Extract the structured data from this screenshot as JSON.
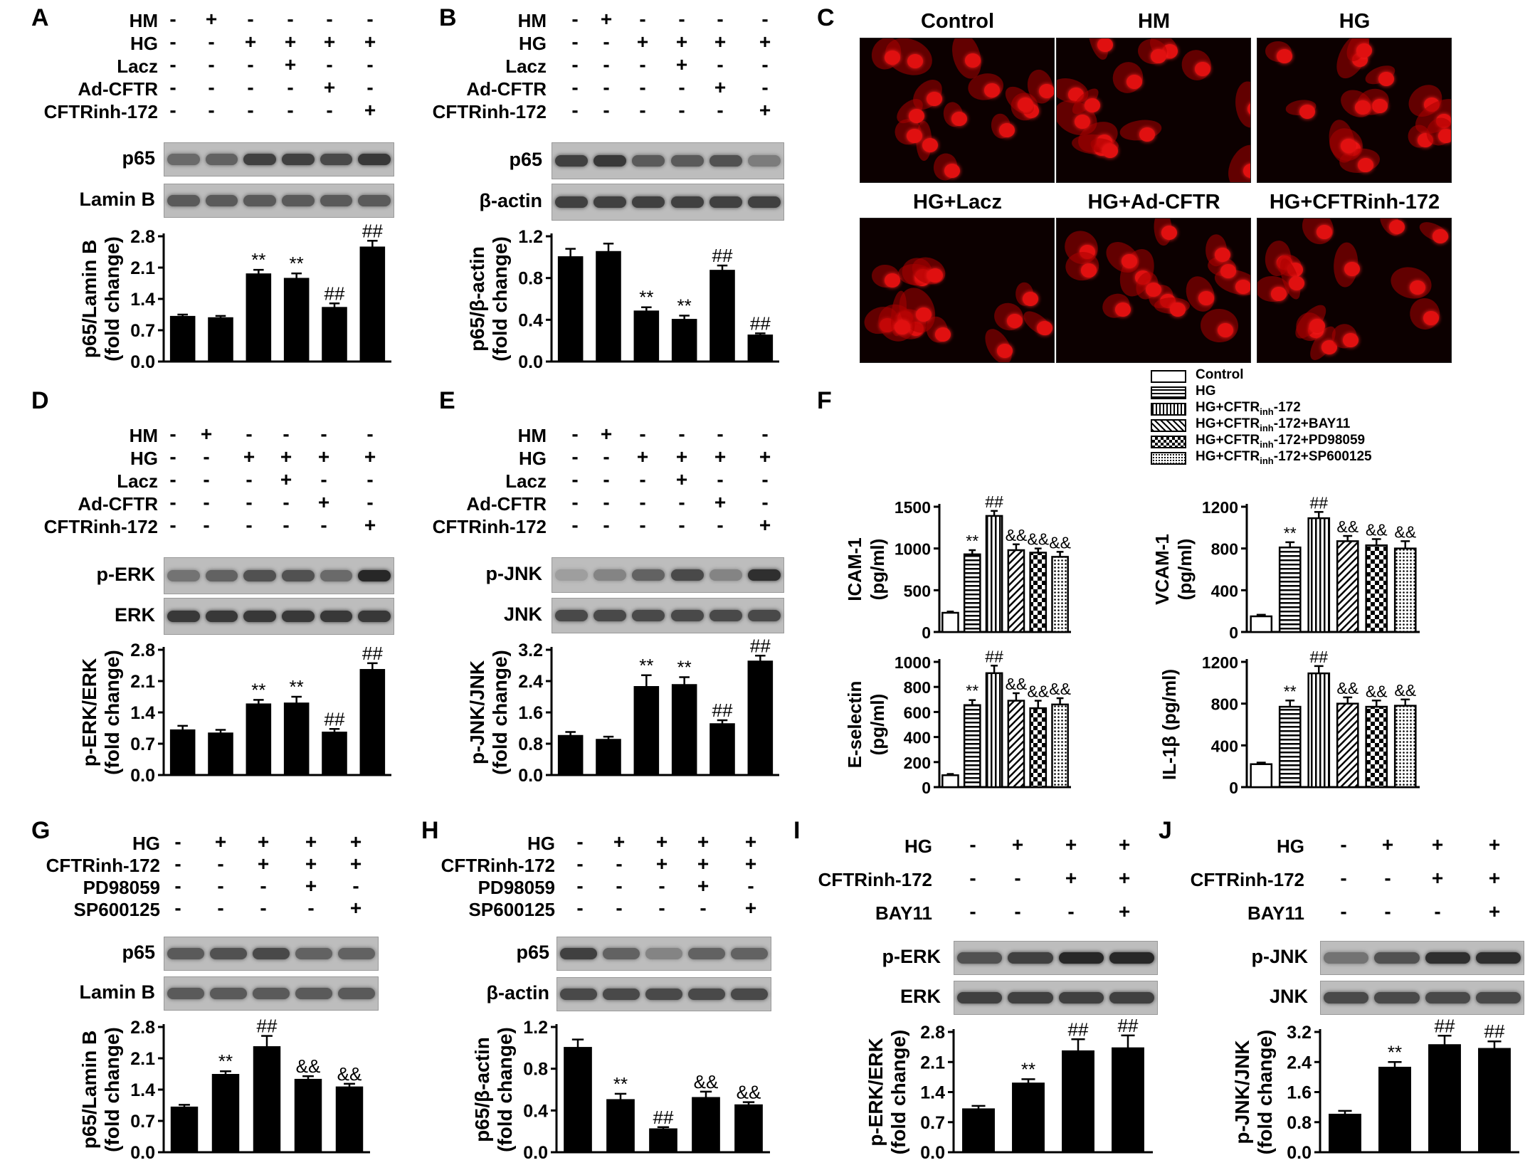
{
  "panels": {
    "A": {
      "label": "A",
      "rows": [
        {
          "name": "HM",
          "s": [
            "-",
            "+",
            "-",
            "-",
            "-",
            "-"
          ]
        },
        {
          "name": "HG",
          "s": [
            "-",
            "-",
            "+",
            "+",
            "+",
            "+"
          ]
        },
        {
          "name": "Lacz",
          "s": [
            "-",
            "-",
            "-",
            "+",
            "-",
            "-"
          ]
        },
        {
          "name": "Ad-CFTR",
          "s": [
            "-",
            "-",
            "-",
            "-",
            "+",
            "-"
          ]
        },
        {
          "name": "CFTRinh-172",
          "s": [
            "-",
            "-",
            "-",
            "-",
            "-",
            "+"
          ]
        }
      ],
      "blots": [
        "p65",
        "Lamin B"
      ],
      "ylabel1": "p65/Lamin B",
      "ylabel2": "(fold change)",
      "ticks": [
        "0.0",
        "0.7",
        "1.4",
        "2.1",
        "2.8"
      ]
    },
    "B": {
      "label": "B",
      "rows": [
        {
          "name": "HM",
          "s": [
            "-",
            "+",
            "-",
            "-",
            "-",
            "-"
          ]
        },
        {
          "name": "HG",
          "s": [
            "-",
            "-",
            "+",
            "+",
            "+",
            "+"
          ]
        },
        {
          "name": "Lacz",
          "s": [
            "-",
            "-",
            "-",
            "+",
            "-",
            "-"
          ]
        },
        {
          "name": "Ad-CFTR",
          "s": [
            "-",
            "-",
            "-",
            "-",
            "+",
            "-"
          ]
        },
        {
          "name": "CFTRinh-172",
          "s": [
            "-",
            "-",
            "-",
            "-",
            "-",
            "+"
          ]
        }
      ],
      "blots": [
        "p65",
        "β-actin"
      ],
      "ylabel1": "p65/β-actin",
      "ylabel2": "(fold change)",
      "ticks": [
        "0.0",
        "0.4",
        "0.8",
        "1.2"
      ]
    },
    "C": {
      "label": "C",
      "titles": [
        "Control",
        "HM",
        "HG",
        "HG+Lacz",
        "HG+Ad-CFTR",
        "HG+CFTRinh-172"
      ]
    },
    "D": {
      "label": "D",
      "rows": [
        {
          "name": "HM",
          "s": [
            "-",
            "+",
            "-",
            "-",
            "-",
            "-"
          ]
        },
        {
          "name": "HG",
          "s": [
            "-",
            "-",
            "+",
            "+",
            "+",
            "+"
          ]
        },
        {
          "name": "Lacz",
          "s": [
            "-",
            "-",
            "-",
            "+",
            "-",
            "-"
          ]
        },
        {
          "name": "Ad-CFTR",
          "s": [
            "-",
            "-",
            "-",
            "-",
            "+",
            "-"
          ]
        },
        {
          "name": "CFTRinh-172",
          "s": [
            "-",
            "-",
            "-",
            "-",
            "-",
            "+"
          ]
        }
      ],
      "blots": [
        "p-ERK",
        "ERK"
      ],
      "ylabel1": "p-ERK/ERK",
      "ylabel2": "(fold change)",
      "ticks": [
        "0.0",
        "0.7",
        "1.4",
        "2.1",
        "2.8"
      ]
    },
    "E": {
      "label": "E",
      "rows": [
        {
          "name": "HM",
          "s": [
            "-",
            "+",
            "-",
            "-",
            "-",
            "-"
          ]
        },
        {
          "name": "HG",
          "s": [
            "-",
            "-",
            "+",
            "+",
            "+",
            "+"
          ]
        },
        {
          "name": "Lacz",
          "s": [
            "-",
            "-",
            "-",
            "+",
            "-",
            "-"
          ]
        },
        {
          "name": "Ad-CFTR",
          "s": [
            "-",
            "-",
            "-",
            "-",
            "+",
            "-"
          ]
        },
        {
          "name": "CFTRinh-172",
          "s": [
            "-",
            "-",
            "-",
            "-",
            "-",
            "+"
          ]
        }
      ],
      "blots": [
        "p-JNK",
        "JNK"
      ],
      "ylabel1": "p-JNK/JNK",
      "ylabel2": "(fold change)",
      "ticks": [
        "0.0",
        "0.8",
        "1.6",
        "2.4",
        "3.2"
      ]
    },
    "F": {
      "label": "F",
      "legend": [
        {
          "pre": "Control",
          "sub": "",
          "post": "",
          "pattern": "white"
        },
        {
          "pre": "HG",
          "sub": "",
          "post": "",
          "pattern": "hstripe"
        },
        {
          "pre": "HG+CFTR",
          "sub": "inh",
          "post": "-172",
          "pattern": "vstripe"
        },
        {
          "pre": "HG+CFTR",
          "sub": "inh",
          "post": "-172+BAY11",
          "pattern": "diag"
        },
        {
          "pre": "HG+CFTR",
          "sub": "inh",
          "post": "-172+PD98059",
          "pattern": "check"
        },
        {
          "pre": "HG+CFTR",
          "sub": "inh",
          "post": "-172+SP600125",
          "pattern": "dots"
        }
      ],
      "charts": [
        {
          "ylabel1": "ICAM-1",
          "ylabel2": "(pg/ml)",
          "ticks": [
            "0",
            "500",
            "1000",
            "1500"
          ]
        },
        {
          "ylabel1": "VCAM-1",
          "ylabel2": "(pg/ml)",
          "ticks": [
            "0",
            "400",
            "800",
            "1200"
          ]
        },
        {
          "ylabel1": "E-selectin",
          "ylabel2": "(pg/ml)",
          "ticks": [
            "0",
            "200",
            "400",
            "600",
            "800",
            "1000"
          ]
        },
        {
          "ylabel1": "IL-1β (pg/ml)",
          "ylabel2": "",
          "ticks": [
            "0",
            "400",
            "800",
            "1200"
          ]
        }
      ]
    },
    "G": {
      "label": "G",
      "rows": [
        {
          "name": "HG",
          "s": [
            "-",
            "+",
            "+",
            "+",
            "+"
          ]
        },
        {
          "name": "CFTRinh-172",
          "s": [
            "-",
            "-",
            "+",
            "+",
            "+"
          ]
        },
        {
          "name": "PD98059",
          "s": [
            "-",
            "-",
            "-",
            "+",
            "-"
          ]
        },
        {
          "name": "SP600125",
          "s": [
            "-",
            "-",
            "-",
            "-",
            "+"
          ]
        }
      ],
      "blots": [
        "p65",
        "Lamin B"
      ],
      "ylabel1": "p65/Lamin B",
      "ylabel2": "(fold change)",
      "ticks": [
        "0.0",
        "0.7",
        "1.4",
        "2.1",
        "2.8"
      ]
    },
    "H": {
      "label": "H",
      "rows": [
        {
          "name": "HG",
          "s": [
            "-",
            "+",
            "+",
            "+",
            "+"
          ]
        },
        {
          "name": "CFTRinh-172",
          "s": [
            "-",
            "-",
            "+",
            "+",
            "+"
          ]
        },
        {
          "name": "PD98059",
          "s": [
            "-",
            "-",
            "-",
            "+",
            "-"
          ]
        },
        {
          "name": "SP600125",
          "s": [
            "-",
            "-",
            "-",
            "-",
            "+"
          ]
        }
      ],
      "blots": [
        "p65",
        "β-actin"
      ],
      "ylabel1": "p65/β-actin",
      "ylabel2": "(fold change)",
      "ticks": [
        "0.0",
        "0.4",
        "0.8",
        "1.2"
      ]
    },
    "I": {
      "label": "I",
      "rows": [
        {
          "name": "HG",
          "s": [
            "-",
            "+",
            "+",
            "+"
          ]
        },
        {
          "name": "CFTRinh-172",
          "s": [
            "-",
            "-",
            "+",
            "+"
          ]
        },
        {
          "name": "BAY11",
          "s": [
            "-",
            "-",
            "-",
            "+"
          ]
        }
      ],
      "blots": [
        "p-ERK",
        "ERK"
      ],
      "ylabel1": "p-ERK/ERK",
      "ylabel2": "(fold change)",
      "ticks": [
        "0.0",
        "0.7",
        "1.4",
        "2.1",
        "2.8"
      ]
    },
    "J": {
      "label": "J",
      "rows": [
        {
          "name": "HG",
          "s": [
            "-",
            "+",
            "+",
            "+"
          ]
        },
        {
          "name": "CFTRinh-172",
          "s": [
            "-",
            "-",
            "+",
            "+"
          ]
        },
        {
          "name": "BAY11",
          "s": [
            "-",
            "-",
            "-",
            "+"
          ]
        }
      ],
      "blots": [
        "p-JNK",
        "JNK"
      ],
      "ylabel1": "p-JNK/JNK",
      "ylabel2": "(fold change)",
      "ticks": [
        "0.0",
        "0.8",
        "1.6",
        "2.4",
        "3.2"
      ]
    }
  },
  "chart_data": [
    {
      "id": "A",
      "type": "bar",
      "ylabel": "p65/Lamin B (fold change)",
      "ylim": [
        0,
        2.8
      ],
      "values": [
        1.0,
        0.97,
        1.95,
        1.85,
        1.2,
        2.55
      ],
      "errors": [
        0.05,
        0.05,
        0.1,
        0.12,
        0.1,
        0.15
      ],
      "annotations": [
        "",
        "",
        "**",
        "**",
        "##",
        "##"
      ],
      "color": "#000000"
    },
    {
      "id": "B",
      "type": "bar",
      "ylabel": "p65/β-actin (fold change)",
      "ylim": [
        0,
        1.2
      ],
      "values": [
        1.0,
        1.05,
        0.48,
        0.4,
        0.87,
        0.25
      ],
      "errors": [
        0.08,
        0.08,
        0.04,
        0.04,
        0.05,
        0.02
      ],
      "annotations": [
        "",
        "",
        "**",
        "**",
        "##",
        "##"
      ],
      "color": "#000000"
    },
    {
      "id": "D",
      "type": "bar",
      "ylabel": "p-ERK/ERK (fold change)",
      "ylim": [
        0,
        2.8
      ],
      "values": [
        1.0,
        0.93,
        1.58,
        1.6,
        0.95,
        2.35
      ],
      "errors": [
        0.1,
        0.08,
        0.1,
        0.15,
        0.08,
        0.15
      ],
      "annotations": [
        "",
        "",
        "**",
        "**",
        "##",
        "##"
      ],
      "color": "#000000"
    },
    {
      "id": "E",
      "type": "bar",
      "ylabel": "p-JNK/JNK (fold change)",
      "ylim": [
        0,
        3.2
      ],
      "values": [
        1.0,
        0.9,
        2.25,
        2.3,
        1.3,
        2.9
      ],
      "errors": [
        0.1,
        0.08,
        0.3,
        0.2,
        0.1,
        0.15
      ],
      "annotations": [
        "",
        "",
        "**",
        "**",
        "##",
        "##"
      ],
      "color": "#000000"
    },
    {
      "id": "F-ICAM-1",
      "type": "bar",
      "ylabel": "ICAM-1 (pg/ml)",
      "ylim": [
        0,
        1500
      ],
      "values": [
        230,
        930,
        1390,
        980,
        950,
        900
      ],
      "errors": [
        15,
        50,
        60,
        70,
        50,
        60
      ],
      "annotations": [
        "",
        "**",
        "##",
        "&&",
        "&&",
        "&&"
      ],
      "series": [
        "Control",
        "HG",
        "HG+CFTRinh-172",
        "HG+CFTRinh-172+BAY11",
        "HG+CFTRinh-172+PD98059",
        "HG+CFTRinh-172+SP600125"
      ]
    },
    {
      "id": "F-VCAM-1",
      "type": "bar",
      "ylabel": "VCAM-1 (pg/ml)",
      "ylim": [
        0,
        1200
      ],
      "values": [
        150,
        810,
        1090,
        870,
        830,
        800
      ],
      "errors": [
        15,
        50,
        60,
        50,
        60,
        70
      ],
      "annotations": [
        "",
        "**",
        "##",
        "&&",
        "&&",
        "&&"
      ],
      "series": [
        "Control",
        "HG",
        "HG+CFTRinh-172",
        "HG+CFTRinh-172+BAY11",
        "HG+CFTRinh-172+PD98059",
        "HG+CFTRinh-172+SP600125"
      ]
    },
    {
      "id": "F-E-selectin",
      "type": "bar",
      "ylabel": "E-selectin (pg/ml)",
      "ylim": [
        0,
        1000
      ],
      "values": [
        95,
        655,
        910,
        690,
        630,
        660
      ],
      "errors": [
        10,
        40,
        60,
        60,
        60,
        50
      ],
      "annotations": [
        "",
        "**",
        "##",
        "&&",
        "&&",
        "&&"
      ],
      "series": [
        "Control",
        "HG",
        "HG+CFTRinh-172",
        "HG+CFTRinh-172+BAY11",
        "HG+CFTRinh-172+PD98059",
        "HG+CFTRinh-172+SP600125"
      ]
    },
    {
      "id": "F-IL-1β",
      "type": "bar",
      "ylabel": "IL-1β (pg/ml)",
      "ylim": [
        0,
        1200
      ],
      "values": [
        220,
        770,
        1090,
        800,
        770,
        780
      ],
      "errors": [
        15,
        60,
        70,
        60,
        60,
        60
      ],
      "annotations": [
        "",
        "**",
        "##",
        "&&",
        "&&",
        "&&"
      ],
      "series": [
        "Control",
        "HG",
        "HG+CFTRinh-172",
        "HG+CFTRinh-172+BAY11",
        "HG+CFTRinh-172+PD98059",
        "HG+CFTRinh-172+SP600125"
      ]
    },
    {
      "id": "G",
      "type": "bar",
      "ylabel": "p65/Lamin B (fold change)",
      "ylim": [
        0,
        2.8
      ],
      "values": [
        1.0,
        1.73,
        2.35,
        1.62,
        1.45
      ],
      "errors": [
        0.06,
        0.08,
        0.25,
        0.08,
        0.08
      ],
      "annotations": [
        "",
        "**",
        "##",
        "&&",
        "&&"
      ],
      "color": "#000000"
    },
    {
      "id": "H",
      "type": "bar",
      "ylabel": "p65/β-actin (fold change)",
      "ylim": [
        0,
        1.2
      ],
      "values": [
        1.0,
        0.5,
        0.22,
        0.52,
        0.45
      ],
      "errors": [
        0.08,
        0.06,
        0.02,
        0.06,
        0.03
      ],
      "annotations": [
        "",
        "**",
        "##",
        "&&",
        "&&"
      ],
      "color": "#000000"
    },
    {
      "id": "I",
      "type": "bar",
      "ylabel": "p-ERK/ERK (fold change)",
      "ylim": [
        0,
        2.8
      ],
      "values": [
        1.0,
        1.6,
        2.35,
        2.42
      ],
      "errors": [
        0.08,
        0.1,
        0.28,
        0.3
      ],
      "annotations": [
        "",
        "**",
        "##",
        "##"
      ],
      "color": "#000000"
    },
    {
      "id": "J",
      "type": "bar",
      "ylabel": "p-JNK/JNK (fold change)",
      "ylim": [
        0,
        3.2
      ],
      "values": [
        1.0,
        2.25,
        2.85,
        2.75
      ],
      "errors": [
        0.1,
        0.15,
        0.25,
        0.2
      ],
      "annotations": [
        "",
        "**",
        "##",
        "##"
      ],
      "color": "#000000"
    }
  ]
}
